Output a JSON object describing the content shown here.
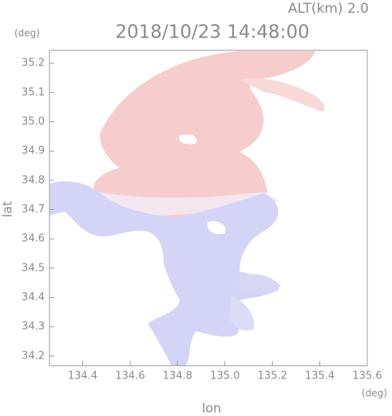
{
  "chart_data": {
    "type": "map",
    "subtitle": "ALT(km) 2.0",
    "title": "2018/10/23 14:48:00",
    "y_unit": "(deg)",
    "x_unit": "(deg)",
    "y_label": "lat",
    "x_label": "lon",
    "xlim": [
      134.26,
      135.6
    ],
    "ylim": [
      34.167,
      35.244
    ],
    "xticks": [
      134.4,
      134.6,
      134.8,
      {
        "value": 135.0,
        "label": "135.0"
      },
      135.2,
      135.4,
      135.6
    ],
    "yticks": [
      34.2,
      34.3,
      34.4,
      34.5,
      34.6,
      34.7,
      34.8,
      34.9,
      {
        "value": 35.0,
        "label": "35.0"
      },
      35.1,
      35.2
    ]
  }
}
